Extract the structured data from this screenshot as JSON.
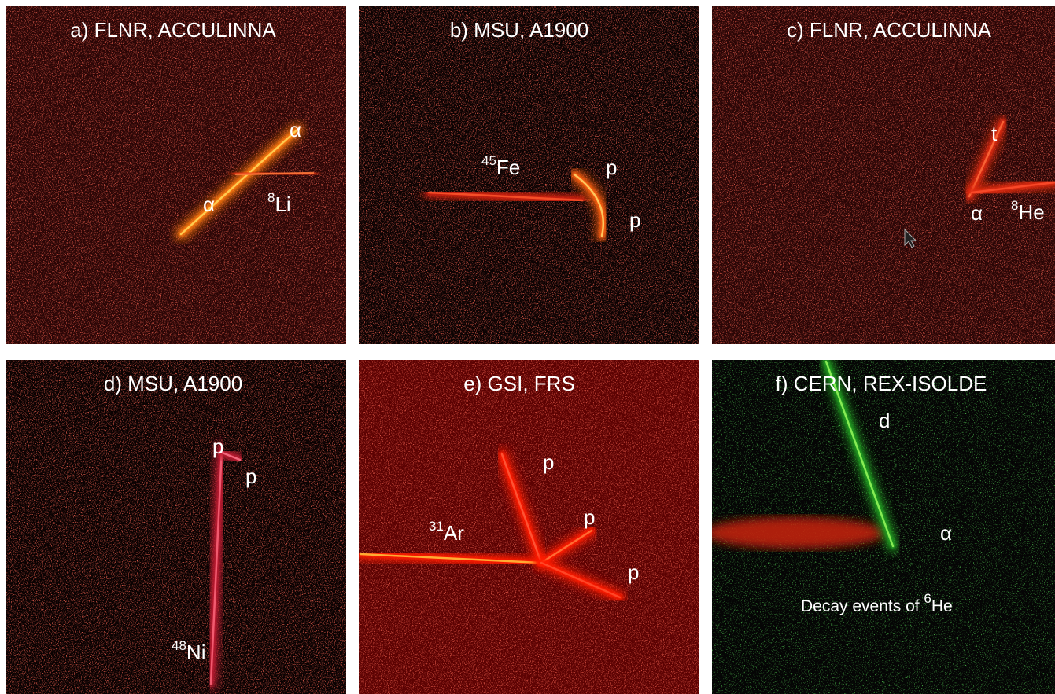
{
  "panels": [
    {
      "title": "a) FLNR, ACCULINNA",
      "labels": [
        {
          "parts": [
            {
              "text": "α"
            }
          ]
        },
        {
          "parts": [
            {
              "text": "α"
            }
          ]
        },
        {
          "parts": [
            {
              "sup": "8"
            },
            {
              "text": "Li"
            }
          ]
        }
      ]
    },
    {
      "title": "b) MSU, A1900",
      "labels": [
        {
          "parts": [
            {
              "sup": "45"
            },
            {
              "text": "Fe"
            }
          ]
        },
        {
          "parts": [
            {
              "text": "p"
            }
          ]
        },
        {
          "parts": [
            {
              "text": "p"
            }
          ]
        }
      ]
    },
    {
      "title": "c) FLNR, ACCULINNA",
      "labels": [
        {
          "parts": [
            {
              "text": "t"
            }
          ]
        },
        {
          "parts": [
            {
              "text": "α"
            }
          ]
        },
        {
          "parts": [
            {
              "sup": "8"
            },
            {
              "text": "He"
            }
          ]
        }
      ]
    },
    {
      "title": "d) MSU, A1900",
      "labels": [
        {
          "parts": [
            {
              "text": "p"
            }
          ]
        },
        {
          "parts": [
            {
              "text": "p"
            }
          ]
        },
        {
          "parts": [
            {
              "sup": "48"
            },
            {
              "text": "Ni"
            }
          ]
        }
      ]
    },
    {
      "title": "e) GSI, FRS",
      "labels": [
        {
          "parts": [
            {
              "text": "p"
            }
          ]
        },
        {
          "parts": [
            {
              "text": "p"
            }
          ]
        },
        {
          "parts": [
            {
              "text": "p"
            }
          ]
        },
        {
          "parts": [
            {
              "sup": "31"
            },
            {
              "text": "Ar"
            }
          ]
        }
      ]
    },
    {
      "title": "f) CERN, REX-ISOLDE",
      "labels": [
        {
          "parts": [
            {
              "text": "d"
            }
          ]
        },
        {
          "parts": [
            {
              "text": "α"
            }
          ]
        },
        {
          "parts": [
            {
              "text": "Decay events of "
            },
            {
              "sup": "6"
            },
            {
              "text": "He"
            }
          ]
        }
      ]
    }
  ]
}
